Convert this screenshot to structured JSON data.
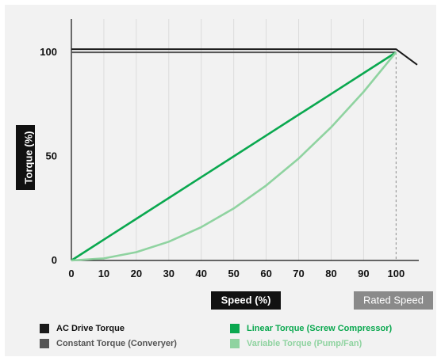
{
  "chart_data": {
    "type": "line",
    "title": "",
    "xlabel": "Speed (%)",
    "ylabel": "Torque (%)",
    "x_ticks": [
      0,
      10,
      20,
      30,
      40,
      50,
      60,
      70,
      80,
      90,
      100
    ],
    "y_ticks": [
      0,
      50,
      100
    ],
    "xlim": [
      0,
      107
    ],
    "ylim": [
      0,
      116
    ],
    "grid": true,
    "legend_position": "bottom",
    "rated_speed_label": "Rated Speed",
    "rated_speed_x": 100,
    "series": [
      {
        "name": "AC Drive Torque",
        "color": "#1a1a1a",
        "x": [
          0,
          100,
          106.5
        ],
        "values": [
          101.5,
          101.5,
          94
        ]
      },
      {
        "name": "Constant Torque (Converyer)",
        "color": "#555555",
        "x": [
          0,
          100
        ],
        "values": [
          100,
          100
        ]
      },
      {
        "name": "Linear Torque (Screw Compressor)",
        "color": "#0aa84f",
        "x": [
          0,
          10,
          20,
          30,
          40,
          50,
          60,
          70,
          80,
          90,
          100
        ],
        "values": [
          0,
          10,
          20,
          30,
          40,
          50,
          60,
          70,
          80,
          90,
          100
        ]
      },
      {
        "name": "Variable Torque (Pump/Fan)",
        "color": "#8fd3a0",
        "x": [
          0,
          10,
          20,
          30,
          40,
          50,
          60,
          70,
          80,
          90,
          100
        ],
        "values": [
          0,
          1,
          4,
          9,
          16,
          25,
          36,
          49,
          64,
          81,
          100
        ]
      }
    ],
    "legend": [
      {
        "label": "AC Drive Torque",
        "color": "#1a1a1a",
        "text_color": "#111111"
      },
      {
        "label": "Linear Torque (Screw Compressor)",
        "color": "#0aa84f",
        "text_color": "#0aa84f"
      },
      {
        "label": "Constant Torque (Converyer)",
        "color": "#555555",
        "text_color": "#555555"
      },
      {
        "label": "Variable Torque (Pump/Fan)",
        "color": "#8fd3a0",
        "text_color": "#8fd3a0"
      }
    ]
  }
}
